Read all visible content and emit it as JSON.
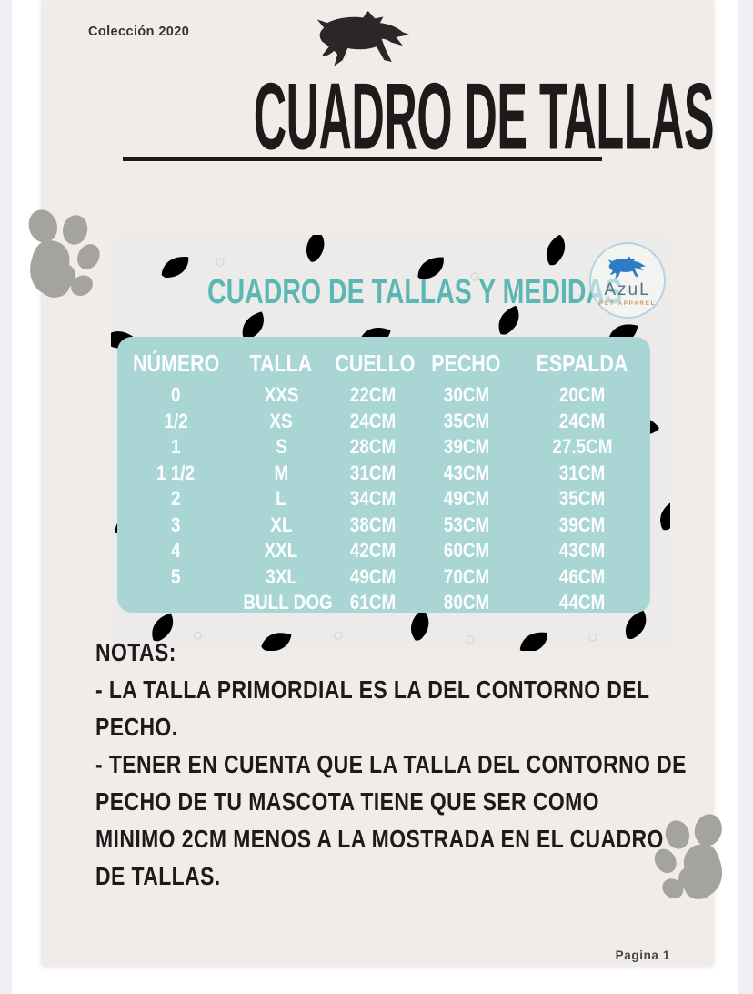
{
  "page": {
    "collection_label": "Colección 2020",
    "title": "CUADRO DE TALLAS",
    "page_number": "Pagina 1"
  },
  "card": {
    "heading": "CUADRO DE TALLAS Y MEDIDAS",
    "logo": {
      "brand": "AzuL",
      "tagline": "PET APPAREL"
    }
  },
  "chart_data": {
    "type": "table",
    "title": "CUADRO DE TALLAS Y MEDIDAS",
    "columns": [
      "NÚMERO",
      "TALLA",
      "CUELLO",
      "PECHO",
      "ESPALDA"
    ],
    "rows": [
      [
        "0",
        "XXS",
        "22CM",
        "30CM",
        "20CM"
      ],
      [
        "1/2",
        "XS",
        "24CM",
        "35CM",
        "24CM"
      ],
      [
        "1",
        "S",
        "28CM",
        "39CM",
        "27.5CM"
      ],
      [
        "1 1/2",
        "M",
        "31CM",
        "43CM",
        "31CM"
      ],
      [
        "2",
        "L",
        "34CM",
        "49CM",
        "35CM"
      ],
      [
        "3",
        "XL",
        "38CM",
        "53CM",
        "39CM"
      ],
      [
        "4",
        "XXL",
        "42CM",
        "60CM",
        "43CM"
      ],
      [
        "5",
        "3XL",
        "49CM",
        "70CM",
        "46CM"
      ],
      [
        "",
        "BULL DOG",
        "61CM",
        "80CM",
        "44CM"
      ]
    ]
  },
  "notes": {
    "heading": "NOTAS:",
    "display_lines": [
      "- LA TALLA PRIMORDIAL ES LA DEL CONTORNO DEL",
      "PECHO.",
      "- TENER EN CUENTA QUE LA TALLA DEL CONTORNO DE",
      "PECHO DE TU MASCOTA TIENE QUE SER COMO",
      "MINIMO 2CM MENOS A LA MOSTRADA EN EL CUADRO",
      "DE TALLAS."
    ]
  },
  "colors": {
    "accent_teal": "#5bb7b3",
    "table_teal": "#a9d6d5",
    "ink": "#1c1a1b",
    "page_bg": "#f2ece9",
    "card_bg": "#ecebe9",
    "paw_gray": "#a5a3a0",
    "dog_ink": "#2b2728",
    "logo_blue": "#2e7cc5",
    "logo_text": "#5b7086",
    "logo_tagline": "#c99c66",
    "strip": "#eef0f6"
  }
}
